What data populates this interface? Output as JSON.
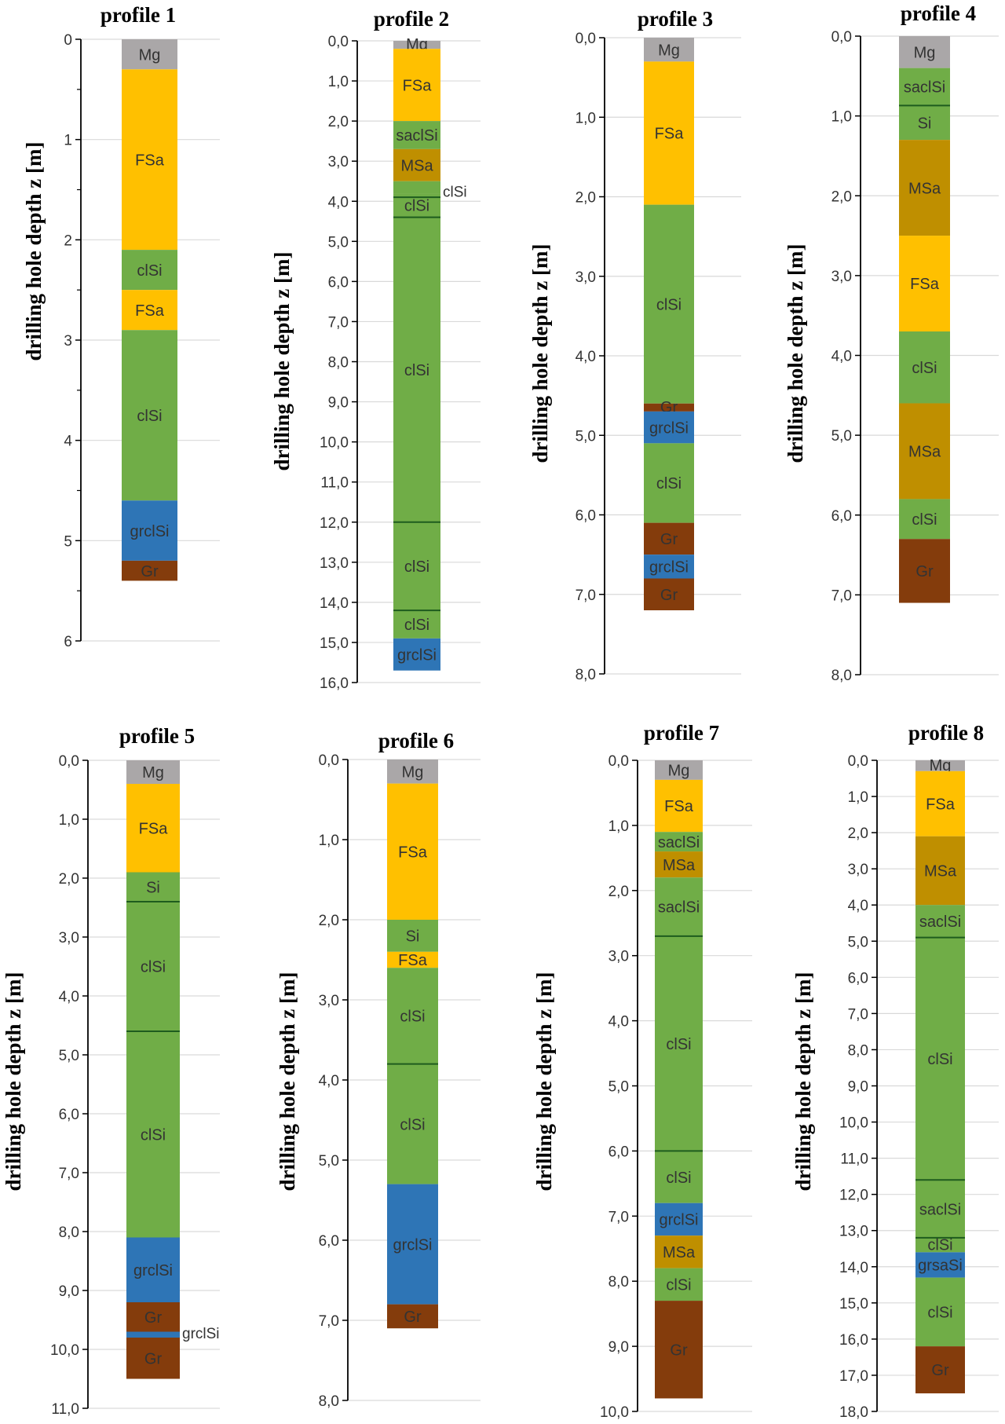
{
  "colors": {
    "Mg": "#aaa7a8",
    "FSa": "#ffc000",
    "clSi": "#70ad47",
    "saclSi": "#70ad47",
    "Si": "#70ad47",
    "MSa": "#bf8f00",
    "grclSi": "#2e75b6",
    "grsaSi": "#2e75b6",
    "Gr": "#843c0c",
    "boundary": "#1e5c1e"
  },
  "chart_data": [
    {
      "type": "bar",
      "title": "profile 1",
      "ylabel": "drilling hole depth z [m]",
      "ylim": [
        0,
        6
      ],
      "tick_step": 1,
      "minor_ticks": true,
      "tick_labels": [
        "0",
        "1",
        "2",
        "3",
        "4",
        "5",
        "6"
      ],
      "layers": [
        {
          "label": "Mg",
          "from": 0.0,
          "to": 0.3
        },
        {
          "label": "FSa",
          "from": 0.3,
          "to": 2.1
        },
        {
          "label": "clSi",
          "from": 2.1,
          "to": 2.5
        },
        {
          "label": "FSa",
          "from": 2.5,
          "to": 2.9
        },
        {
          "label": "clSi",
          "from": 2.9,
          "to": 4.6
        },
        {
          "label": "grclSi",
          "from": 4.6,
          "to": 5.2
        },
        {
          "label": "Gr",
          "from": 5.2,
          "to": 5.4
        }
      ],
      "boundaries": [],
      "annotations": []
    },
    {
      "type": "bar",
      "title": "profile 2",
      "ylabel": "drilling hole depth z [m]",
      "ylim": [
        0,
        16
      ],
      "tick_step": 1,
      "minor_ticks": false,
      "tick_labels": [
        "0,0",
        "1,0",
        "2,0",
        "3,0",
        "4,0",
        "5,0",
        "6,0",
        "7,0",
        "8,0",
        "9,0",
        "10,0",
        "11,0",
        "12,0",
        "13,0",
        "14,0",
        "15,0",
        "16,0"
      ],
      "layers": [
        {
          "label": "Mg",
          "from": 0.0,
          "to": 0.2
        },
        {
          "label": "FSa",
          "from": 0.2,
          "to": 2.0
        },
        {
          "label": "saclSi",
          "from": 2.0,
          "to": 2.7
        },
        {
          "label": "MSa",
          "from": 2.7,
          "to": 3.5
        },
        {
          "label": "",
          "from": 3.5,
          "to": 3.8
        },
        {
          "label": "clSi",
          "from": 3.8,
          "to": 4.4
        },
        {
          "label": "clSi",
          "from": 4.4,
          "to": 12.0
        },
        {
          "label": "clSi",
          "from": 12.0,
          "to": 14.2
        },
        {
          "label": "clSi",
          "from": 14.2,
          "to": 14.9
        },
        {
          "label": "grclSi",
          "from": 14.9,
          "to": 15.7
        }
      ],
      "boundaries": [
        3.9,
        4.4,
        12.0,
        14.2
      ],
      "annotations": [
        {
          "label": "clSi",
          "depth": 3.75
        }
      ]
    },
    {
      "type": "bar",
      "title": "profile 3",
      "ylabel": "drilling hole depth z [m]",
      "ylim": [
        0,
        8
      ],
      "tick_step": 1,
      "minor_ticks": false,
      "tick_labels": [
        "0,0",
        "1,0",
        "2,0",
        "3,0",
        "4,0",
        "5,0",
        "6,0",
        "7,0",
        "8,0"
      ],
      "layers": [
        {
          "label": "Mg",
          "from": 0.0,
          "to": 0.3
        },
        {
          "label": "FSa",
          "from": 0.3,
          "to": 2.1
        },
        {
          "label": "clSi",
          "from": 2.1,
          "to": 4.6
        },
        {
          "label": "Gr",
          "from": 4.6,
          "to": 4.7
        },
        {
          "label": "grclSi",
          "from": 4.7,
          "to": 5.1
        },
        {
          "label": "clSi",
          "from": 5.1,
          "to": 6.1
        },
        {
          "label": "Gr",
          "from": 6.1,
          "to": 6.5
        },
        {
          "label": "grclSi",
          "from": 6.5,
          "to": 6.8
        },
        {
          "label": "Gr",
          "from": 6.8,
          "to": 7.2
        }
      ],
      "boundaries": [],
      "annotations": []
    },
    {
      "type": "bar",
      "title": "profile 4",
      "ylabel": "drilling hole depth z [m]",
      "ylim": [
        0,
        8
      ],
      "tick_step": 1,
      "minor_ticks": false,
      "tick_labels": [
        "0,0",
        "1,0",
        "2,0",
        "3,0",
        "4,0",
        "5,0",
        "6,0",
        "7,0",
        "8,0"
      ],
      "layers": [
        {
          "label": "Mg",
          "from": 0.0,
          "to": 0.4
        },
        {
          "label": "saclSi",
          "from": 0.4,
          "to": 0.87
        },
        {
          "label": "Si",
          "from": 0.87,
          "to": 1.3
        },
        {
          "label": "MSa",
          "from": 1.3,
          "to": 2.5
        },
        {
          "label": "FSa",
          "from": 2.5,
          "to": 3.7
        },
        {
          "label": "clSi",
          "from": 3.7,
          "to": 4.6
        },
        {
          "label": "MSa",
          "from": 4.6,
          "to": 5.8
        },
        {
          "label": "clSi",
          "from": 5.8,
          "to": 6.3
        },
        {
          "label": "Gr",
          "from": 6.3,
          "to": 7.1
        }
      ],
      "boundaries": [
        0.87
      ],
      "annotations": []
    },
    {
      "type": "bar",
      "title": "profile 5",
      "ylabel": "drilling hole depth z [m]",
      "ylim": [
        0,
        11
      ],
      "tick_step": 1,
      "minor_ticks": false,
      "tick_labels": [
        "0,0",
        "1,0",
        "2,0",
        "3,0",
        "4,0",
        "5,0",
        "6,0",
        "7,0",
        "8,0",
        "9,0",
        "10,0",
        "11,0"
      ],
      "layers": [
        {
          "label": "Mg",
          "from": 0.0,
          "to": 0.4
        },
        {
          "label": "FSa",
          "from": 0.4,
          "to": 1.9
        },
        {
          "label": "Si",
          "from": 1.9,
          "to": 2.4
        },
        {
          "label": "clSi",
          "from": 2.4,
          "to": 4.6
        },
        {
          "label": "clSi",
          "from": 4.6,
          "to": 8.1
        },
        {
          "label": "grclSi",
          "from": 8.1,
          "to": 9.2
        },
        {
          "label": "Gr",
          "from": 9.2,
          "to": 9.7
        },
        {
          "label": "",
          "from": 9.7,
          "to": 9.8
        },
        {
          "label": "Gr",
          "from": 9.8,
          "to": 10.5
        }
      ],
      "boundaries": [
        2.4,
        4.6
      ],
      "annotations": [
        {
          "label": "grclSi",
          "depth": 9.72
        }
      ]
    },
    {
      "type": "bar",
      "title": "profile 6",
      "ylabel": "drilling hole depth z [m]",
      "ylim": [
        0,
        8
      ],
      "tick_step": 1,
      "minor_ticks": false,
      "tick_labels": [
        "0,0",
        "1,0",
        "2,0",
        "3,0",
        "4,0",
        "5,0",
        "6,0",
        "7,0",
        "8,0"
      ],
      "layers": [
        {
          "label": "Mg",
          "from": 0.0,
          "to": 0.3
        },
        {
          "label": "FSa",
          "from": 0.3,
          "to": 2.0
        },
        {
          "label": "Si",
          "from": 2.0,
          "to": 2.4
        },
        {
          "label": "FSa",
          "from": 2.4,
          "to": 2.6
        },
        {
          "label": "clSi",
          "from": 2.6,
          "to": 3.8
        },
        {
          "label": "clSi",
          "from": 3.8,
          "to": 5.3
        },
        {
          "label": "grclSi",
          "from": 5.3,
          "to": 6.8
        },
        {
          "label": "Gr",
          "from": 6.8,
          "to": 7.1
        }
      ],
      "boundaries": [
        3.8
      ],
      "annotations": []
    },
    {
      "type": "bar",
      "title": "profile 7",
      "ylabel": "drilling hole depth z [m]",
      "ylim": [
        0,
        10
      ],
      "tick_step": 1,
      "minor_ticks": false,
      "tick_labels": [
        "0,0",
        "1,0",
        "2,0",
        "3,0",
        "4,0",
        "5,0",
        "6,0",
        "7,0",
        "8,0",
        "9,0",
        "10,0"
      ],
      "layers": [
        {
          "label": "Mg",
          "from": 0.0,
          "to": 0.3
        },
        {
          "label": "FSa",
          "from": 0.3,
          "to": 1.1
        },
        {
          "label": "saclSi",
          "from": 1.1,
          "to": 1.4
        },
        {
          "label": "MSa",
          "from": 1.4,
          "to": 1.8
        },
        {
          "label": "saclSi",
          "from": 1.8,
          "to": 2.7
        },
        {
          "label": "clSi",
          "from": 2.7,
          "to": 6.0
        },
        {
          "label": "clSi",
          "from": 6.0,
          "to": 6.8
        },
        {
          "label": "grclSi",
          "from": 6.8,
          "to": 7.3
        },
        {
          "label": "MSa",
          "from": 7.3,
          "to": 7.8
        },
        {
          "label": "clSi",
          "from": 7.8,
          "to": 8.3
        },
        {
          "label": "Gr",
          "from": 8.3,
          "to": 9.8
        }
      ],
      "boundaries": [
        2.7,
        6.0
      ],
      "annotations": []
    },
    {
      "type": "bar",
      "title": "profile 8",
      "ylabel": "drilling hole depth z [m]",
      "ylim": [
        0,
        18
      ],
      "tick_step": 1,
      "minor_ticks": false,
      "tick_labels": [
        "0,0",
        "1,0",
        "2,0",
        "3,0",
        "4,0",
        "5,0",
        "6,0",
        "7,0",
        "8,0",
        "9,0",
        "10,0",
        "11,0",
        "12,0",
        "13,0",
        "14,0",
        "15,0",
        "16,0",
        "17,0",
        "18,0"
      ],
      "layers": [
        {
          "label": "Mg",
          "from": 0.0,
          "to": 0.3
        },
        {
          "label": "FSa",
          "from": 0.3,
          "to": 2.1
        },
        {
          "label": "MSa",
          "from": 2.1,
          "to": 4.0
        },
        {
          "label": "saclSi",
          "from": 4.0,
          "to": 4.9
        },
        {
          "label": "clSi",
          "from": 4.9,
          "to": 11.6
        },
        {
          "label": "saclSi",
          "from": 11.6,
          "to": 13.2
        },
        {
          "label": "clSi",
          "from": 13.2,
          "to": 13.6
        },
        {
          "label": "grsaSi",
          "from": 13.6,
          "to": 14.3
        },
        {
          "label": "clSi",
          "from": 14.3,
          "to": 16.2
        },
        {
          "label": "Gr",
          "from": 16.2,
          "to": 17.5
        }
      ],
      "boundaries": [
        4.9,
        11.6,
        13.2
      ],
      "annotations": []
    }
  ]
}
